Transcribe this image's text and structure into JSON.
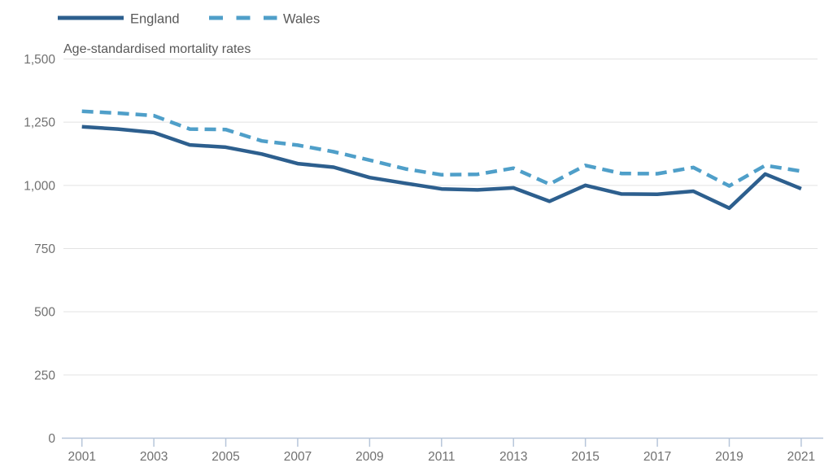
{
  "legend": {
    "items": [
      {
        "label": "England",
        "style": "solid"
      },
      {
        "label": "Wales",
        "style": "dashed"
      }
    ]
  },
  "subtitle": "Age-standardised mortality rates",
  "colors": {
    "england": "#2d5f8e",
    "wales": "#4f9fc9",
    "grid": "#e2e2e2",
    "axis": "#b7c6da",
    "tick_text": "#707070",
    "label_text": "#595959"
  },
  "chart_data": {
    "type": "line",
    "title": "Age-standardised mortality rates",
    "x": [
      2001,
      2002,
      2003,
      2004,
      2005,
      2006,
      2007,
      2008,
      2009,
      2010,
      2011,
      2012,
      2013,
      2014,
      2015,
      2016,
      2017,
      2018,
      2019,
      2020,
      2021
    ],
    "x_tick_labels": [
      "2001",
      "2003",
      "2005",
      "2007",
      "2009",
      "2011",
      "2013",
      "2015",
      "2017",
      "2019",
      "2021"
    ],
    "y_ticks": [
      0,
      250,
      500,
      750,
      1000,
      1250,
      1500
    ],
    "y_tick_labels": [
      "0",
      "250",
      "500",
      "750",
      "1,000",
      "1,250",
      "1,500"
    ],
    "ylim": [
      0,
      1500
    ],
    "grid": true,
    "legend_position": "top-left",
    "series": [
      {
        "name": "England",
        "color": "#2d5f8e",
        "line_style": "solid",
        "values": [
          1232,
          1223,
          1209,
          1160,
          1151,
          1124,
          1086,
          1072,
          1031,
          1008,
          986,
          982,
          990,
          937,
          1000,
          966,
          965,
          977,
          910,
          1045,
          987
        ]
      },
      {
        "name": "Wales",
        "color": "#4f9fc9",
        "line_style": "dashed",
        "values": [
          1293,
          1286,
          1276,
          1223,
          1221,
          1176,
          1159,
          1133,
          1100,
          1065,
          1042,
          1044,
          1068,
          1005,
          1079,
          1047,
          1046,
          1071,
          998,
          1079,
          1056
        ]
      }
    ]
  }
}
